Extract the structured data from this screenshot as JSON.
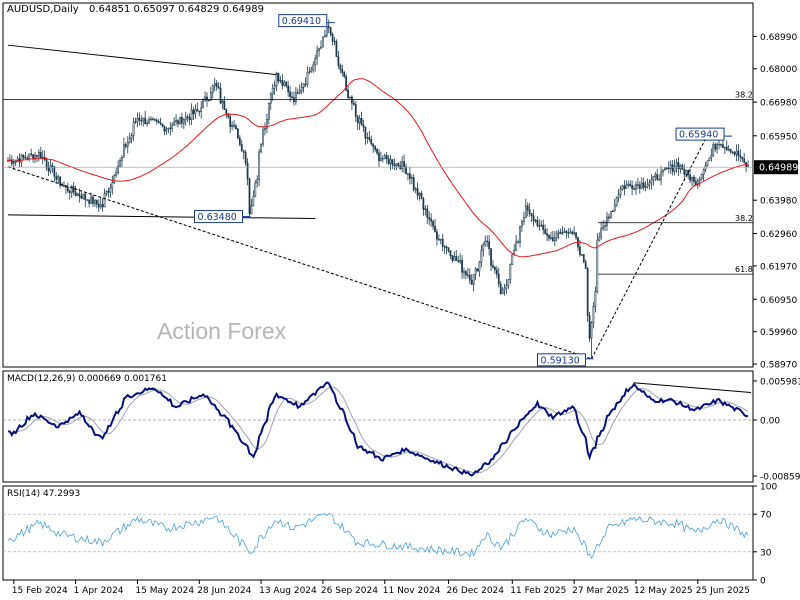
{
  "header": {
    "title": "AUDUSD,Daily",
    "ohlc": "0.64851 0.65097 0.64829 0.64989"
  },
  "watermark": "Action Forex",
  "colors": {
    "candle": "#1e3a4c",
    "ma": "#e8181f",
    "macd": "#06127a",
    "signal": "#9ea3b6",
    "rsi": "#4a9fd9",
    "price_tag": "#000000"
  },
  "chart_data": [
    {
      "type": "candlestick",
      "panel": "price",
      "ylim": [
        0.5888,
        0.7001
      ],
      "yticks": [
        {
          "v": 0.6899,
          "label": "0.68990"
        },
        {
          "v": 0.68,
          "label": "0.68000"
        },
        {
          "v": 0.6698,
          "label": "0.66980"
        },
        {
          "v": 0.6595,
          "label": "0.65950"
        },
        {
          "v": 0.6398,
          "label": "0.63980"
        },
        {
          "v": 0.6296,
          "label": "0.62960"
        },
        {
          "v": 0.6197,
          "label": "0.61970"
        },
        {
          "v": 0.6095,
          "label": "0.60950"
        },
        {
          "v": 0.5996,
          "label": "0.59960"
        },
        {
          "v": 0.5897,
          "label": "0.58970"
        }
      ],
      "current": {
        "v": 0.64989,
        "label": "0.64989"
      },
      "date_labels": [
        "15 Feb 2024",
        "1 Apr 2024",
        "15 May 2024",
        "28 Jun 2024",
        "13 Aug 2024",
        "26 Sep 2024",
        "11 Nov 2024",
        "26 Dec 2024",
        "11 Feb 2025",
        "27 Mar 2025",
        "12 May 2025",
        "25 Jun 2025"
      ],
      "anchors": [
        [
          "2024-02-15",
          0.652
        ],
        [
          "2024-03-05",
          0.654
        ],
        [
          "2024-03-22",
          0.644
        ],
        [
          "2024-04-19",
          0.638
        ],
        [
          "2024-05-15",
          0.665
        ],
        [
          "2024-06-05",
          0.662
        ],
        [
          "2024-06-28",
          0.667
        ],
        [
          "2024-07-10",
          0.675
        ],
        [
          "2024-07-31",
          0.655
        ],
        [
          "2024-08-05",
          0.636
        ],
        [
          "2024-08-14",
          0.661
        ],
        [
          "2024-08-23",
          0.678
        ],
        [
          "2024-09-05",
          0.671
        ],
        [
          "2024-09-18",
          0.68
        ],
        [
          "2024-09-30",
          0.693
        ],
        [
          "2024-10-15",
          0.671
        ],
        [
          "2024-10-28",
          0.659
        ],
        [
          "2024-11-06",
          0.653
        ],
        [
          "2024-11-25",
          0.65
        ],
        [
          "2024-12-18",
          0.629
        ],
        [
          "2025-01-13",
          0.615
        ],
        [
          "2025-01-22",
          0.628
        ],
        [
          "2025-02-03",
          0.61
        ],
        [
          "2025-02-20",
          0.637
        ],
        [
          "2025-03-10",
          0.628
        ],
        [
          "2025-03-25",
          0.631
        ],
        [
          "2025-04-04",
          0.62
        ],
        [
          "2025-04-08",
          0.598
        ],
        [
          "2025-04-14",
          0.628
        ],
        [
          "2025-05-01",
          0.644
        ],
        [
          "2025-05-20",
          0.645
        ],
        [
          "2025-06-10",
          0.651
        ],
        [
          "2025-06-23",
          0.645
        ],
        [
          "2025-07-10",
          0.658
        ],
        [
          "2025-07-23",
          0.654
        ],
        [
          "2025-07-31",
          0.6499
        ]
      ],
      "levels": [
        {
          "label": "0.69410",
          "v": 0.6941
        },
        {
          "label": "0.63480",
          "v": 0.6348
        },
        {
          "label": "0.65940",
          "v": 0.6594
        },
        {
          "label": "0.59130",
          "v": 0.5913
        }
      ],
      "fib": [
        {
          "label": "38.2",
          "v": 0.6706
        },
        {
          "label": "38.2",
          "v": 0.6329
        },
        {
          "label": "61.8",
          "v": 0.6172
        }
      ]
    },
    {
      "type": "line",
      "panel": "macd",
      "label": "MACD(12,26,9) 0.000669 0.001761",
      "ylim": [
        -0.0095,
        0.0075
      ],
      "yticks": [
        {
          "v": 0.005981,
          "label": "0.005981"
        },
        {
          "v": 0.0,
          "label": "0.00"
        },
        {
          "v": -0.00859,
          "label": "-0.00859"
        }
      ],
      "anchors": [
        [
          "2024-02-15",
          -0.002
        ],
        [
          "2024-03-01",
          0.001
        ],
        [
          "2024-03-18",
          -0.001
        ],
        [
          "2024-04-03",
          0.001
        ],
        [
          "2024-04-19",
          -0.003
        ],
        [
          "2024-05-07",
          0.0035
        ],
        [
          "2024-05-27",
          0.005
        ],
        [
          "2024-06-12",
          0.002
        ],
        [
          "2024-07-02",
          0.004
        ],
        [
          "2024-07-19",
          0.0
        ],
        [
          "2024-08-07",
          -0.0055
        ],
        [
          "2024-08-23",
          0.004
        ],
        [
          "2024-09-10",
          0.002
        ],
        [
          "2024-09-30",
          0.006
        ],
        [
          "2024-10-22",
          -0.004
        ],
        [
          "2024-11-08",
          -0.006
        ],
        [
          "2024-11-25",
          -0.0045
        ],
        [
          "2024-12-18",
          -0.0065
        ],
        [
          "2025-01-13",
          -0.0085
        ],
        [
          "2025-01-27",
          -0.006
        ],
        [
          "2025-02-14",
          -0.001
        ],
        [
          "2025-02-28",
          0.0025
        ],
        [
          "2025-03-12",
          0.0005
        ],
        [
          "2025-03-27",
          0.002
        ],
        [
          "2025-04-08",
          -0.0055
        ],
        [
          "2025-04-22",
          0.001
        ],
        [
          "2025-05-09",
          0.0055
        ],
        [
          "2025-05-23",
          0.003
        ],
        [
          "2025-06-06",
          0.003
        ],
        [
          "2025-06-23",
          0.0015
        ],
        [
          "2025-07-10",
          0.003
        ],
        [
          "2025-07-31",
          0.0007
        ]
      ]
    },
    {
      "type": "line",
      "panel": "rsi",
      "label": "RSI(14) 47.2993",
      "ylim": [
        0,
        100
      ],
      "yticks": [
        {
          "v": 100,
          "label": "100"
        },
        {
          "v": 70,
          "label": "70"
        },
        {
          "v": 30,
          "label": "30"
        },
        {
          "v": 0,
          "label": "0"
        }
      ],
      "anchors": [
        [
          "2024-02-15",
          45
        ],
        [
          "2024-03-05",
          60
        ],
        [
          "2024-03-22",
          48
        ],
        [
          "2024-04-19",
          40
        ],
        [
          "2024-05-15",
          65
        ],
        [
          "2024-06-05",
          55
        ],
        [
          "2024-06-28",
          62
        ],
        [
          "2024-07-10",
          68
        ],
        [
          "2024-08-05",
          30
        ],
        [
          "2024-08-23",
          65
        ],
        [
          "2024-09-05",
          55
        ],
        [
          "2024-09-30",
          70
        ],
        [
          "2024-10-22",
          40
        ],
        [
          "2024-11-08",
          38
        ],
        [
          "2024-12-18",
          32
        ],
        [
          "2025-01-13",
          28
        ],
        [
          "2025-01-22",
          48
        ],
        [
          "2025-02-03",
          35
        ],
        [
          "2025-02-20",
          65
        ],
        [
          "2025-03-10",
          48
        ],
        [
          "2025-03-27",
          55
        ],
        [
          "2025-04-08",
          25
        ],
        [
          "2025-04-22",
          55
        ],
        [
          "2025-05-09",
          65
        ],
        [
          "2025-06-10",
          60
        ],
        [
          "2025-06-23",
          50
        ],
        [
          "2025-07-10",
          65
        ],
        [
          "2025-07-31",
          47
        ]
      ]
    }
  ]
}
